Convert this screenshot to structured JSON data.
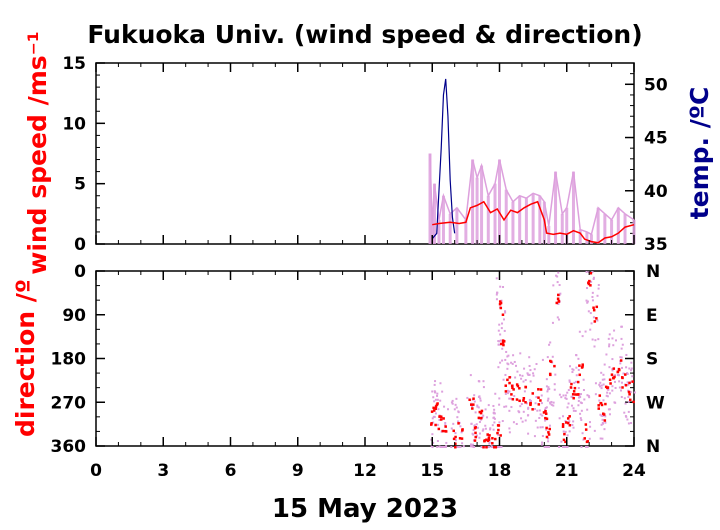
{
  "chart_data": {
    "type": "line",
    "title": "Fukuoka Univ. (wind speed & direction)",
    "xlabel": "15 May 2023",
    "x_ticks": [
      "0",
      "3",
      "6",
      "9",
      "12",
      "15",
      "18",
      "21",
      "24"
    ],
    "xlim": [
      0,
      24
    ],
    "colors": {
      "speed": "#ff0000",
      "gust": "#dda0dd",
      "temp": "#00008b",
      "dir": "#ff0000",
      "dir_scatter": "#dda0dd"
    },
    "panels": [
      {
        "name": "wind",
        "ylabel": "wind speed /ms⁻¹",
        "ylabel_color": "#ff0000",
        "ylim": [
          0,
          15
        ],
        "y_ticks": [
          "0",
          "5",
          "10",
          "15"
        ],
        "y2label": "temp. /ºC",
        "y2label_color": "#00008b",
        "y2lim": [
          35,
          52
        ],
        "y2_ticks": [
          "35",
          "40",
          "45",
          "50"
        ],
        "series": [
          {
            "key": "gust",
            "x": [
              14.9,
              15.0,
              15.1,
              15.3,
              15.5,
              15.8,
              16.1,
              16.5,
              16.8,
              17.0,
              17.2,
              17.5,
              17.8,
              18.0,
              18.3,
              18.6,
              18.9,
              19.2,
              19.5,
              19.8,
              20.0,
              20.2,
              20.5,
              20.8,
              21.0,
              21.3,
              21.6,
              21.9,
              22.1,
              22.4,
              22.7,
              23.0,
              23.3,
              23.6,
              24.0
            ],
            "values": [
              7.5,
              1.5,
              5.0,
              2.0,
              4.0,
              2.5,
              3.0,
              2.0,
              7.0,
              5.5,
              6.5,
              4.0,
              5.0,
              7.0,
              4.5,
              3.5,
              4.0,
              3.8,
              4.2,
              4.0,
              3.5,
              1.5,
              6.0,
              2.5,
              3.0,
              6.0,
              1.2,
              1.0,
              0.8,
              3.0,
              2.5,
              2.0,
              3.0,
              2.5,
              2.0
            ]
          },
          {
            "key": "speed",
            "x": [
              15.0,
              15.3,
              15.8,
              16.2,
              16.5,
              16.7,
              17.0,
              17.3,
              17.6,
              17.9,
              18.2,
              18.5,
              18.8,
              19.1,
              19.4,
              19.7,
              20.0,
              20.1,
              20.4,
              20.7,
              21.0,
              21.3,
              21.6,
              21.8,
              22.1,
              22.4,
              22.7,
              23.0,
              23.3,
              23.6,
              24.0
            ],
            "values": [
              1.6,
              1.7,
              1.8,
              1.7,
              1.8,
              3.0,
              3.2,
              3.5,
              2.6,
              2.9,
              2.0,
              2.8,
              2.6,
              3.0,
              3.3,
              3.5,
              2.0,
              0.9,
              0.8,
              0.9,
              0.8,
              1.1,
              0.9,
              0.4,
              0.2,
              0.1,
              0.5,
              0.6,
              0.9,
              1.4,
              1.6
            ]
          },
          {
            "key": "temp",
            "x": [
              15.0,
              15.2,
              15.4,
              15.5,
              15.6,
              15.7,
              15.8,
              15.9,
              16.0
            ],
            "values": [
              35.5,
              36.0,
              44.0,
              49.0,
              50.5,
              47.0,
              41.0,
              37.5,
              36.0
            ]
          }
        ]
      },
      {
        "name": "direction",
        "ylabel": "direction /º",
        "ylabel_color": "#ff0000",
        "ylim": [
          0,
          360
        ],
        "y_ticks": [
          "0",
          "90",
          "180",
          "270",
          "360"
        ],
        "y2_ticks": [
          "N",
          "E",
          "S",
          "W",
          "N"
        ],
        "series": [
          {
            "key": "dir",
            "x": [
              15.0,
              15.1,
              15.3,
              15.5,
              16.0,
              16.2,
              16.7,
              16.9,
              17.1,
              17.3,
              17.5,
              17.7,
              17.9,
              18.0,
              18.1,
              18.3,
              18.5,
              18.8,
              19.1,
              19.4,
              19.7,
              20.0,
              20.1,
              20.3,
              20.5,
              20.8,
              21.0,
              21.2,
              21.4,
              21.6,
              21.8,
              22.0,
              22.2,
              22.4,
              22.6,
              22.8,
              23.0,
              23.3,
              23.5,
              23.8,
              24.0
            ],
            "values": [
              300,
              290,
              305,
              320,
              345,
              330,
              280,
              330,
              300,
              350,
              340,
              355,
              330,
              70,
              150,
              230,
              250,
              245,
              255,
              265,
              260,
              300,
              340,
              200,
              60,
              330,
              300,
              250,
              240,
              200,
              330,
              20,
              90,
              270,
              290,
              240,
              200,
              190,
              220,
              245,
              250
            ]
          }
        ]
      }
    ]
  }
}
